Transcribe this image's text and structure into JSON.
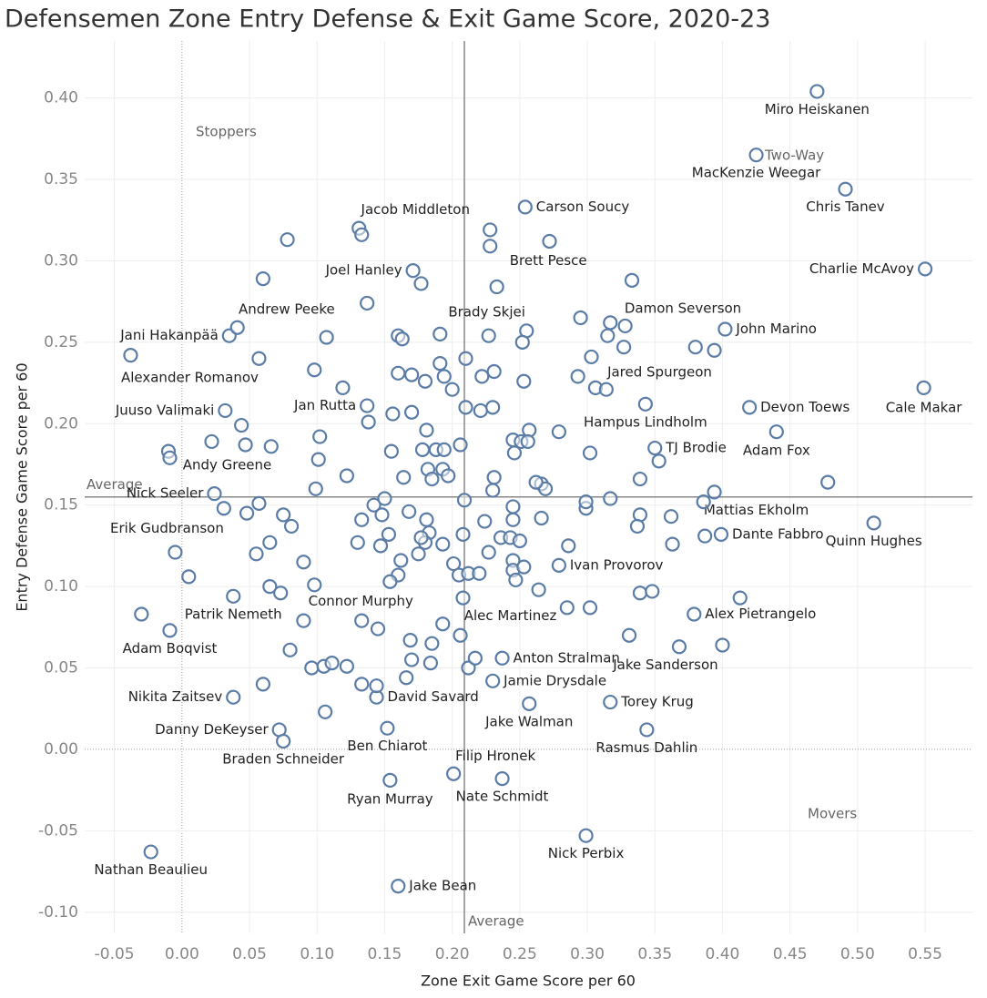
{
  "chart_data": {
    "type": "scatter",
    "title": "Defensemen Zone Entry Defense & Exit Game Score, 2020-23",
    "x_label": "Zone Exit Game Score per 60",
    "y_label": "Entry Defense Game Score per 60",
    "color": "#5a7ca6",
    "grid": true,
    "xlim": [
      -0.072,
      0.585
    ],
    "ylim": [
      -0.113,
      0.435
    ],
    "xticks": [
      -0.05,
      {
        "value": 0,
        "label": "0.00"
      },
      0.05,
      {
        "value": 0.1,
        "label": "0.10"
      },
      0.15,
      {
        "value": 0.2,
        "label": "0.20"
      },
      0.25,
      {
        "value": 0.3,
        "label": "0.30"
      },
      0.35,
      {
        "value": 0.4,
        "label": "0.40"
      },
      0.45,
      {
        "value": 0.5,
        "label": "0.50"
      },
      0.55
    ],
    "yticks": [
      {
        "value": -0.1,
        "label": "-0.10"
      },
      -0.05,
      {
        "value": 0,
        "label": "0.00"
      },
      0.05,
      {
        "value": 0.1,
        "label": "0.10"
      },
      0.15,
      {
        "value": 0.2,
        "label": "0.20"
      },
      0.25,
      {
        "value": 0.3,
        "label": "0.30"
      },
      0.35,
      {
        "value": 0.4,
        "label": "0.40"
      }
    ],
    "x_reference": {
      "value": 0.209,
      "label": "Average"
    },
    "y_reference": {
      "value": 0.155,
      "label": "Average"
    },
    "quadrant_labels": [
      "Stoppers",
      "Two-Way",
      "Movers"
    ],
    "x": [
      0.47,
      0.425,
      0.491,
      0.55,
      0.254,
      0.131,
      0.228,
      0.171,
      0.06,
      0.233,
      0.333,
      0.035,
      0.402,
      -0.038,
      0.303,
      0.032,
      0.137,
      0.42,
      0.549,
      0.343,
      0.35,
      0.44,
      0.022,
      0.024,
      0.394,
      -0.005,
      0.399,
      0.512,
      0.279,
      0.098,
      0.038,
      0.208,
      0.379,
      -0.009,
      0.237,
      0.368,
      0.23,
      0.038,
      0.144,
      0.317,
      0.257,
      0.072,
      0.152,
      0.344,
      0.075,
      0.201,
      0.154,
      0.237,
      0.299,
      -0.023,
      0.16,
      0.078,
      0.133,
      0.228,
      0.272,
      0.177,
      0.137,
      0.041,
      0.16,
      0.163,
      0.107,
      0.191,
      0.227,
      0.255,
      0.252,
      0.295,
      0.317,
      0.328,
      0.315,
      0.327,
      0.38,
      0.394,
      0.057,
      0.098,
      0.119,
      0.16,
      0.17,
      0.18,
      0.191,
      0.194,
      0.2,
      0.21,
      0.222,
      0.231,
      0.253,
      0.293,
      0.306,
      0.314,
      0.21,
      0.221,
      0.23,
      0.044,
      0.047,
      0.066,
      0.102,
      0.138,
      0.156,
      0.17,
      0.181,
      0.178,
      0.188,
      0.194,
      0.206,
      0.155,
      -0.01,
      -0.009,
      0.101,
      0.122,
      0.164,
      0.182,
      0.185,
      0.193,
      0.197,
      0.231,
      0.23,
      0.266,
      0.269,
      0.262,
      0.279,
      0.257,
      0.245,
      0.251,
      0.256,
      0.246,
      0.302,
      0.353,
      0.339,
      0.478,
      0.099,
      0.031,
      0.048,
      0.057,
      0.075,
      0.081,
      0.142,
      0.15,
      0.148,
      0.133,
      0.168,
      0.181,
      0.183,
      0.18,
      0.13,
      0.153,
      0.147,
      0.175,
      0.162,
      0.16,
      0.154,
      0.177,
      0.193,
      0.209,
      0.208,
      0.224,
      0.236,
      0.243,
      0.25,
      0.245,
      0.245,
      0.266,
      0.286,
      0.299,
      0.299,
      0.317,
      0.339,
      0.337,
      0.362,
      0.363,
      0.387,
      0.386,
      0.055,
      0.065,
      0.09,
      0.005,
      0.065,
      0.073,
      0.09,
      0.133,
      0.145,
      0.169,
      0.185,
      0.206,
      0.193,
      0.201,
      0.205,
      0.212,
      0.22,
      0.227,
      0.245,
      0.245,
      0.253,
      0.247,
      0.264,
      0.285,
      0.302,
      0.331,
      0.339,
      0.348,
      0.4,
      0.413,
      0.08,
      0.096,
      0.105,
      0.111,
      0.122,
      0.133,
      0.144,
      0.166,
      0.17,
      0.184,
      0.212,
      0.217,
      -0.03,
      0.06,
      0.106
    ],
    "values": [
      0.404,
      0.365,
      0.344,
      0.295,
      0.333,
      0.32,
      0.309,
      0.294,
      0.289,
      0.284,
      0.288,
      0.254,
      0.258,
      0.242,
      0.241,
      0.208,
      0.211,
      0.21,
      0.222,
      0.212,
      0.185,
      0.195,
      0.189,
      0.157,
      0.158,
      0.121,
      0.132,
      0.139,
      0.113,
      0.101,
      0.094,
      0.093,
      0.083,
      0.073,
      0.056,
      0.063,
      0.042,
      0.032,
      0.032,
      0.029,
      0.028,
      0.012,
      0.013,
      0.012,
      0.005,
      -0.015,
      -0.019,
      -0.018,
      -0.053,
      -0.063,
      -0.084,
      0.313,
      0.316,
      0.319,
      0.312,
      0.286,
      0.274,
      0.259,
      0.254,
      0.252,
      0.253,
      0.255,
      0.254,
      0.257,
      0.25,
      0.265,
      0.262,
      0.26,
      0.254,
      0.247,
      0.247,
      0.245,
      0.24,
      0.233,
      0.222,
      0.231,
      0.23,
      0.226,
      0.237,
      0.229,
      0.221,
      0.24,
      0.229,
      0.232,
      0.226,
      0.229,
      0.222,
      0.221,
      0.21,
      0.208,
      0.21,
      0.199,
      0.187,
      0.186,
      0.192,
      0.201,
      0.206,
      0.207,
      0.196,
      0.184,
      0.184,
      0.184,
      0.187,
      0.183,
      0.183,
      0.179,
      0.178,
      0.168,
      0.167,
      0.172,
      0.166,
      0.172,
      0.168,
      0.167,
      0.159,
      0.163,
      0.16,
      0.164,
      0.195,
      0.196,
      0.19,
      0.189,
      0.189,
      0.182,
      0.182,
      0.177,
      0.166,
      0.164,
      0.16,
      0.148,
      0.145,
      0.151,
      0.144,
      0.137,
      0.15,
      0.154,
      0.144,
      0.141,
      0.146,
      0.141,
      0.133,
      0.127,
      0.127,
      0.132,
      0.125,
      0.12,
      0.116,
      0.107,
      0.103,
      0.13,
      0.126,
      0.153,
      0.132,
      0.14,
      0.13,
      0.13,
      0.128,
      0.149,
      0.141,
      0.142,
      0.125,
      0.148,
      0.152,
      0.154,
      0.144,
      0.137,
      0.143,
      0.126,
      0.131,
      0.152,
      0.12,
      0.127,
      0.115,
      0.106,
      0.1,
      0.096,
      0.079,
      0.079,
      0.074,
      0.067,
      0.065,
      0.07,
      0.077,
      0.114,
      0.107,
      0.108,
      0.108,
      0.121,
      0.116,
      0.11,
      0.112,
      0.104,
      0.098,
      0.087,
      0.087,
      0.07,
      0.096,
      0.097,
      0.064,
      0.093,
      0.061,
      0.05,
      0.051,
      0.053,
      0.051,
      0.04,
      0.039,
      0.044,
      0.055,
      0.053,
      0.05,
      0.056,
      0.083,
      0.04,
      0.023
    ],
    "labels": [
      "Miro Heiskanen",
      "MacKenzie Weegar",
      "Chris Tanev",
      "Charlie McAvoy",
      "Carson Soucy",
      "Jacob Middleton",
      "Brett Pesce",
      "Joel Hanley",
      "Andrew Peeke",
      "Brady Skjei",
      "Damon Severson",
      "Jani Hakanpää",
      "John Marino",
      "Alexander Romanov",
      "Jared Spurgeon",
      "Juuso Valimaki",
      "Jan Rutta",
      "Devon Toews",
      "Cale Makar",
      "Hampus Lindholm",
      "TJ Brodie",
      "Adam Fox",
      "Andy Greene",
      "Nick Seeler",
      "Mattias Ekholm",
      "Erik Gudbranson",
      "Dante Fabbro",
      "Quinn Hughes",
      "Ivan Provorov",
      "Connor Murphy",
      "Patrik Nemeth",
      "Alec Martinez",
      "Alex Pietrangelo",
      "Adam Boqvist",
      "Anton Stralman",
      "Jake Sanderson",
      "Jamie Drysdale",
      "Nikita Zaitsev",
      "David Savard",
      "Torey Krug",
      "Jake Walman",
      "Danny DeKeyser",
      "Ben Chiarot",
      "Rasmus Dahlin",
      "Braden Schneider",
      "Filip Hronek",
      "Ryan Murray",
      "Nate Schmidt",
      "Nick Perbix",
      "Nathan Beaulieu",
      "Jake Bean",
      null,
      null,
      null,
      null,
      null,
      null,
      null,
      null,
      null,
      null,
      null,
      null,
      null,
      null,
      null,
      null,
      null,
      null,
      null,
      null,
      null,
      null,
      null,
      null,
      null,
      null,
      null,
      null,
      null,
      null,
      null,
      null,
      null,
      null,
      null,
      null,
      null,
      null,
      null,
      null,
      null,
      null,
      null,
      null,
      null,
      null,
      null,
      null,
      null,
      null,
      null,
      null,
      null,
      null,
      null,
      null,
      null,
      null,
      null,
      null,
      null,
      null,
      null,
      null,
      null,
      null,
      null,
      null,
      null,
      null,
      null,
      null,
      null,
      null,
      null,
      null,
      null,
      null,
      null,
      null,
      null,
      null,
      null,
      null,
      null,
      null,
      null,
      null,
      null,
      null,
      null,
      null,
      null,
      null,
      null,
      null,
      null,
      null,
      null,
      null,
      null,
      null,
      null,
      null,
      null,
      null,
      null,
      null,
      null,
      null,
      null,
      null,
      null,
      null,
      null,
      null,
      null,
      null,
      null,
      null,
      null,
      null,
      null,
      null,
      null,
      null,
      null,
      null,
      null,
      null,
      null,
      null,
      null,
      null,
      null,
      null,
      null,
      null,
      null,
      null,
      null,
      null,
      null,
      null,
      null,
      null,
      null,
      null,
      null,
      null,
      null,
      null,
      null,
      null,
      null,
      null,
      null,
      null,
      null,
      null,
      null,
      null,
      null,
      null
    ]
  }
}
